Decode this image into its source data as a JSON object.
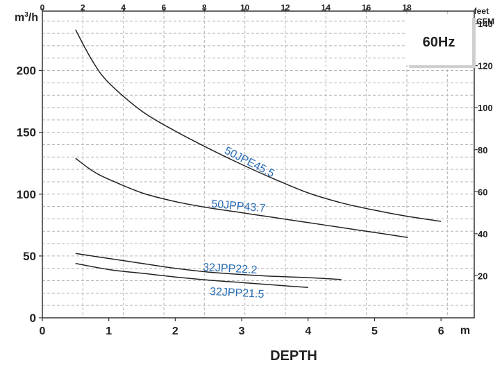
{
  "chart_data": {
    "type": "line",
    "badge": "60Hz",
    "xlabel": "DEPTH",
    "x_unit": "m",
    "x_top_unit": "feet",
    "y_left_unit_base": "m",
    "y_left_unit_sup": "3",
    "y_left_unit_rest": "/h",
    "y_right_unit": "CFM",
    "xlim": [
      0,
      6.5
    ],
    "ylim": [
      0,
      248
    ],
    "x_ticks": [
      0,
      1,
      2,
      3,
      4,
      5,
      6
    ],
    "x_ticks_top": [
      0,
      2,
      4,
      6,
      8,
      10,
      12,
      14,
      16,
      18
    ],
    "y_ticks": [
      0,
      50,
      100,
      150,
      200
    ],
    "y_ticks_right": [
      20,
      40,
      60,
      80,
      100,
      120,
      140
    ],
    "grid": true,
    "series": [
      {
        "name": "50JPE45.5",
        "x": [
          0.5,
          0.75,
          1.0,
          1.5,
          2.0,
          2.5,
          3.0,
          3.5,
          4.0,
          4.5,
          5.0,
          5.5,
          6.0
        ],
        "y": [
          233,
          208,
          190,
          167,
          151,
          137,
          124,
          112,
          101,
          93,
          87,
          82,
          78
        ]
      },
      {
        "name": "50JPP43.7",
        "x": [
          0.5,
          0.75,
          1.0,
          1.5,
          2.0,
          2.5,
          3.0,
          3.5,
          4.0,
          4.5,
          5.0,
          5.5
        ],
        "y": [
          129,
          119,
          112,
          101,
          94,
          89,
          85,
          81,
          77,
          73,
          69,
          65
        ]
      },
      {
        "name": "32JPP22.2",
        "x": [
          0.5,
          1.0,
          1.5,
          2.0,
          2.5,
          3.0,
          3.5,
          4.0,
          4.5
        ],
        "y": [
          52,
          48,
          44,
          40,
          37,
          35,
          33.5,
          32.5,
          31
        ]
      },
      {
        "name": "32JPP21.5",
        "x": [
          0.5,
          1.0,
          1.5,
          2.0,
          2.5,
          3.0,
          3.5,
          4.0
        ],
        "y": [
          44,
          39,
          36,
          33,
          30.5,
          28.5,
          26.5,
          24.5
        ]
      }
    ]
  }
}
